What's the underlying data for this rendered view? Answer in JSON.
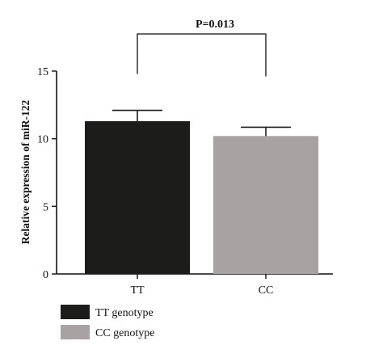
{
  "chart_data": {
    "type": "bar",
    "title": "",
    "xlabel": "",
    "ylabel": "Relative expression of miR-122",
    "ylim": [
      0,
      15
    ],
    "yticks": [
      0,
      5,
      10,
      15
    ],
    "categories": [
      "TT",
      "CC"
    ],
    "values": [
      11.3,
      10.2
    ],
    "errors": [
      0.8,
      0.65
    ],
    "colors": [
      "#1c1d1a",
      "#a8a2a2"
    ],
    "grid": false,
    "significance": {
      "label": "P=0.013",
      "between": [
        "TT",
        "CC"
      ]
    },
    "legend": {
      "placement": "bottom-left",
      "entries": [
        {
          "label": "TT genotype",
          "color": "#1c1d1a"
        },
        {
          "label": "CC genotype",
          "color": "#a8a2a2"
        }
      ]
    }
  }
}
